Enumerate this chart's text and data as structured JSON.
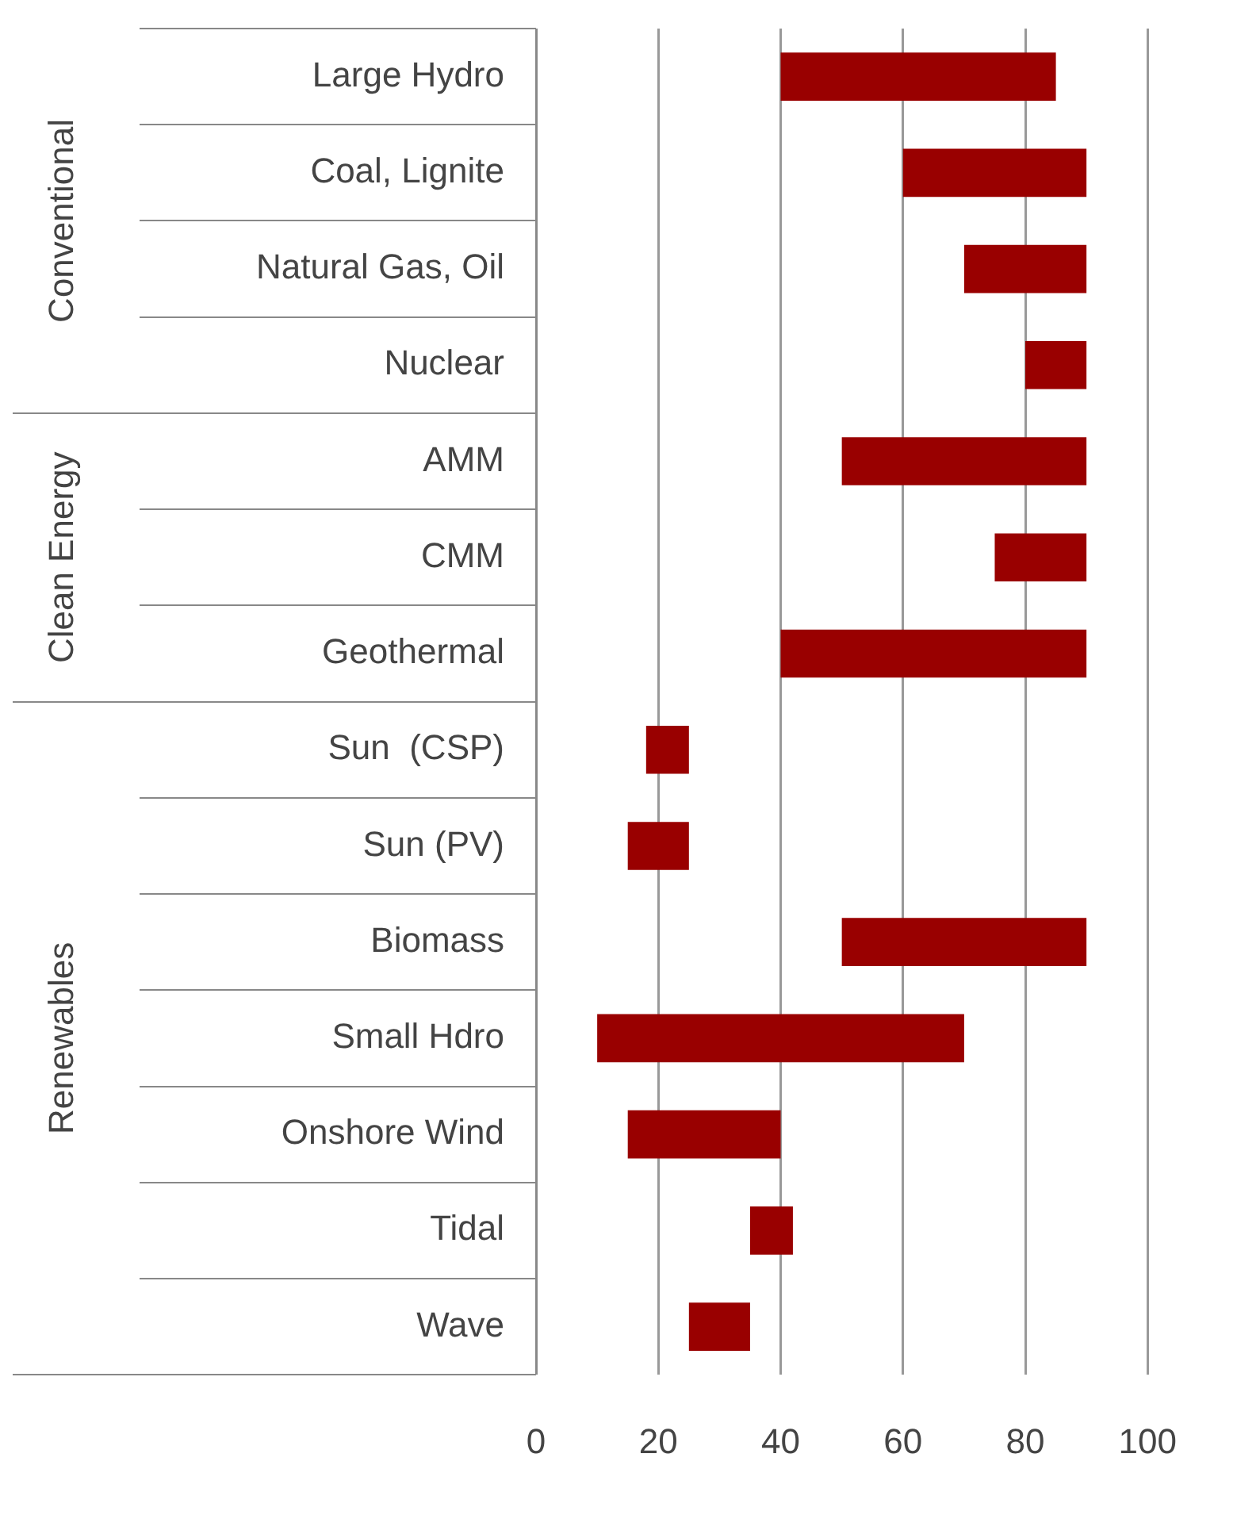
{
  "chart_data": {
    "type": "bar",
    "orientation": "horizontal",
    "categories": [
      "Large Hydro",
      "Coal, Lignite",
      "Natural Gas, Oil",
      "Nuclear",
      "AMM",
      "CMM",
      "Geothermal",
      "Sun  (CSP)",
      "Sun (PV)",
      "Biomass",
      "Small Hdro",
      "Onshore Wind",
      "Tidal",
      "Wave"
    ],
    "base": [
      40,
      60,
      70,
      80,
      50,
      75,
      40,
      18,
      15,
      50,
      10,
      15,
      35,
      25
    ],
    "values": [
      45,
      30,
      20,
      10,
      40,
      15,
      50,
      7,
      10,
      40,
      60,
      25,
      7,
      10
    ],
    "color": "#990000",
    "xlim": [
      0,
      100
    ],
    "xticks": [
      0,
      20,
      40,
      60,
      80,
      100
    ],
    "grid": "x",
    "annotations": [
      "Conventional",
      "Clean Energy",
      "Renewables"
    ]
  }
}
